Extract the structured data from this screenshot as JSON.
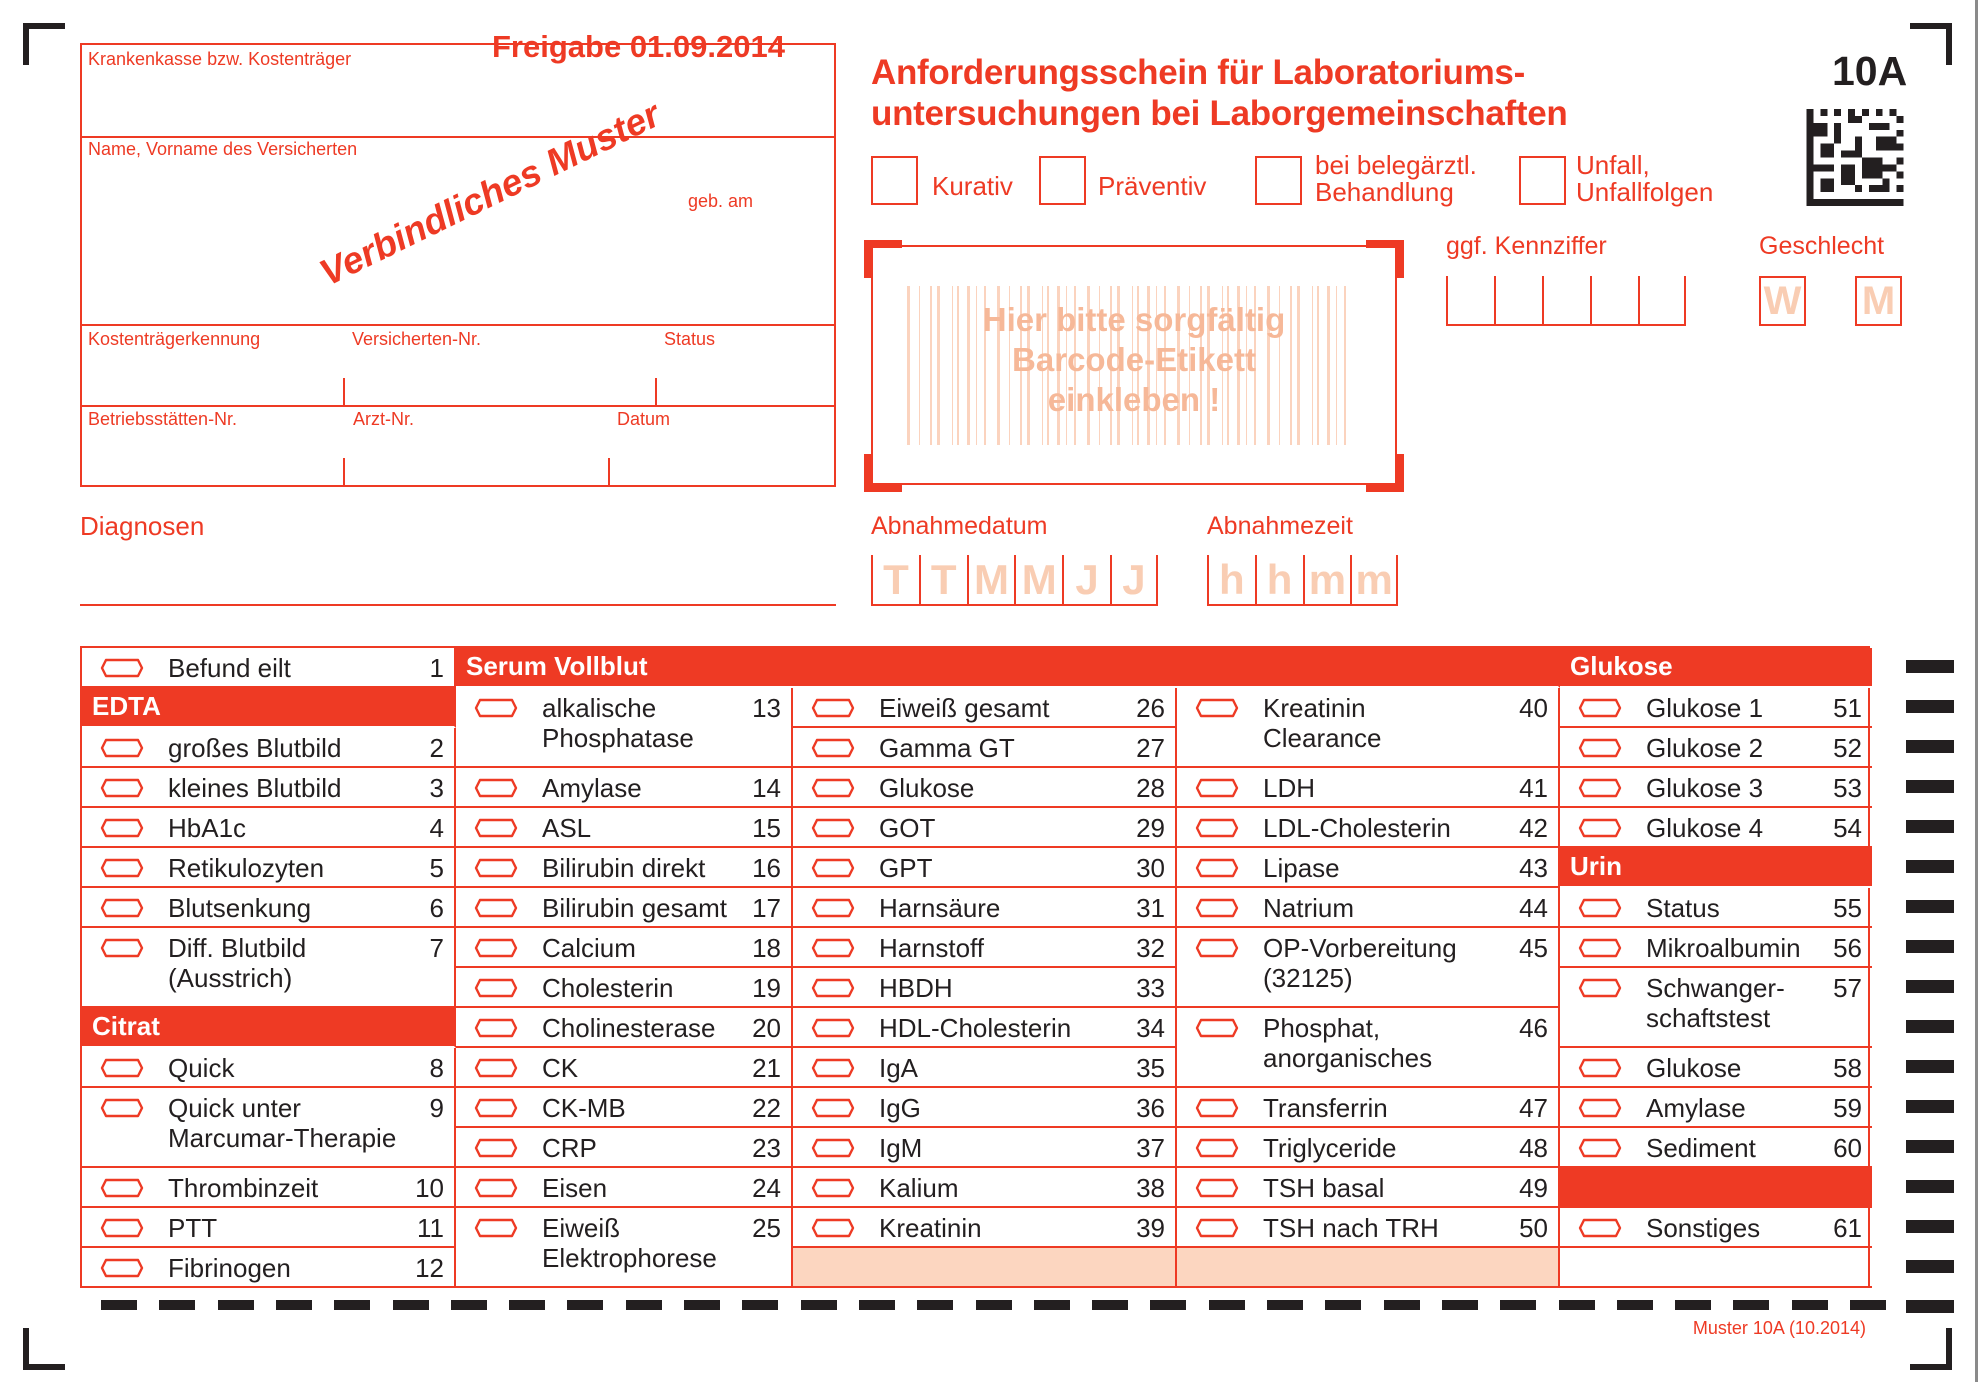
{
  "header": {
    "release": "Freigabe 01.09.2014",
    "watermark": "Verbindliches Muster",
    "title_line1": "Anforderungsschein für Laboratoriums-",
    "title_line2": "untersuchungen bei Laborgemeinschaften",
    "form_number": "10A",
    "datamatrix_icon": "datamatrix-code"
  },
  "patient_box": {
    "insurer": "Krankenkasse bzw. Kostenträger",
    "name": "Name, Vorname des Versicherten",
    "birth": "geb. am",
    "payer_id": "Kostenträgerkennung",
    "insured_no": "Versicherten-Nr.",
    "status": "Status",
    "site_no": "Betriebsstätten-Nr.",
    "doctor_no": "Arzt-Nr.",
    "date": "Datum"
  },
  "diagnoses_label": "Diagnosen",
  "checkboxes": [
    {
      "label": "Kurativ"
    },
    {
      "label": "Präventiv"
    },
    {
      "label": "bei belegärztl.\nBehandlung"
    },
    {
      "label": "Unfall,\nUnfallfolgen"
    }
  ],
  "barcode_area": {
    "text_line1": "Hier bitte sorgfältig",
    "text_line2": "Barcode-Etikett",
    "text_line3": "einkleben !"
  },
  "kennziffer": {
    "label": "ggf. Kennziffer",
    "cells": 5
  },
  "sex": {
    "label": "Geschlecht",
    "female": "W",
    "male": "M"
  },
  "collection_date": {
    "label": "Abnahmedatum",
    "placeholders": [
      "T",
      "T",
      "M",
      "M",
      "J",
      "J"
    ]
  },
  "collection_time": {
    "label": "Abnahmezeit",
    "placeholders": [
      "h",
      "h",
      "m",
      "m"
    ]
  },
  "serum_header": "Serum Vollblut",
  "columns": [
    {
      "start": 1,
      "cells": [
        {
          "label": "Befund eilt",
          "num": "1",
          "span": 1
        },
        {
          "header": "EDTA"
        },
        {
          "label": "großes Blutbild",
          "num": "2",
          "span": 1
        },
        {
          "label": "kleines Blutbild",
          "num": "3",
          "span": 1
        },
        {
          "label": "HbA1c",
          "num": "4",
          "span": 1
        },
        {
          "label": "Retikulozyten",
          "num": "5",
          "span": 1
        },
        {
          "label": "Blutsenkung",
          "num": "6",
          "span": 1
        },
        {
          "label": "Diff. Blutbild\n(Ausstrich)",
          "num": "7",
          "span": 2
        },
        {
          "header": "Citrat"
        },
        {
          "label": "Quick",
          "num": "8",
          "span": 1
        },
        {
          "label": "Quick unter\nMarcumar-Therapie",
          "num": "9",
          "span": 2
        },
        {
          "label": "Thrombinzeit",
          "num": "10",
          "span": 1
        },
        {
          "label": "PTT",
          "num": "11",
          "span": 1
        },
        {
          "label": "Fibrinogen",
          "num": "12",
          "span": 1
        }
      ]
    },
    {
      "start": 2,
      "cells": [
        {
          "label": "alkalische\nPhosphatase",
          "num": "13",
          "span": 2
        },
        {
          "label": "Amylase",
          "num": "14",
          "span": 1
        },
        {
          "label": "ASL",
          "num": "15",
          "span": 1
        },
        {
          "label": "Bilirubin direkt",
          "num": "16",
          "span": 1
        },
        {
          "label": "Bilirubin gesamt",
          "num": "17",
          "span": 1
        },
        {
          "label": "Calcium",
          "num": "18",
          "span": 1
        },
        {
          "label": "Cholesterin",
          "num": "19",
          "span": 1
        },
        {
          "label": "Cholinesterase",
          "num": "20",
          "span": 1
        },
        {
          "label": "CK",
          "num": "21",
          "span": 1
        },
        {
          "label": "CK-MB",
          "num": "22",
          "span": 1
        },
        {
          "label": "CRP",
          "num": "23",
          "span": 1
        },
        {
          "label": "Eisen",
          "num": "24",
          "span": 1
        },
        {
          "label": "Eiweiß\nElektrophorese",
          "num": "25",
          "span": 2
        }
      ]
    },
    {
      "start": 2,
      "cells": [
        {
          "label": "Eiweiß gesamt",
          "num": "26",
          "span": 1
        },
        {
          "label": "Gamma GT",
          "num": "27",
          "span": 1
        },
        {
          "label": "Glukose",
          "num": "28",
          "span": 1
        },
        {
          "label": "GOT",
          "num": "29",
          "span": 1
        },
        {
          "label": "GPT",
          "num": "30",
          "span": 1
        },
        {
          "label": "Harnsäure",
          "num": "31",
          "span": 1
        },
        {
          "label": "Harnstoff",
          "num": "32",
          "span": 1
        },
        {
          "label": "HBDH",
          "num": "33",
          "span": 1
        },
        {
          "label": "HDL-Cholesterin",
          "num": "34",
          "span": 1
        },
        {
          "label": "IgA",
          "num": "35",
          "span": 1
        },
        {
          "label": "IgG",
          "num": "36",
          "span": 1
        },
        {
          "label": "IgM",
          "num": "37",
          "span": 1
        },
        {
          "label": "Kalium",
          "num": "38",
          "span": 1
        },
        {
          "label": "Kreatinin",
          "num": "39",
          "span": 1
        },
        {
          "fill": "peach"
        }
      ]
    },
    {
      "start": 2,
      "cells": [
        {
          "label": "Kreatinin\nClearance",
          "num": "40",
          "span": 2
        },
        {
          "label": "LDH",
          "num": "41",
          "span": 1
        },
        {
          "label": "LDL-Cholesterin",
          "num": "42",
          "span": 1
        },
        {
          "label": "Lipase",
          "num": "43",
          "span": 1
        },
        {
          "label": "Natrium",
          "num": "44",
          "span": 1
        },
        {
          "label": "OP-Vorbereitung\n(32125)",
          "num": "45",
          "span": 2
        },
        {
          "label": "Phosphat,\nanorganisches",
          "num": "46",
          "span": 2
        },
        {
          "label": "Transferrin",
          "num": "47",
          "span": 1
        },
        {
          "label": "Triglyceride",
          "num": "48",
          "span": 1
        },
        {
          "label": "TSH basal",
          "num": "49",
          "span": 1
        },
        {
          "label": "TSH nach TRH",
          "num": "50",
          "span": 1
        },
        {
          "fill": "peach"
        }
      ]
    },
    {
      "start": 1,
      "cells": [
        {
          "header": "Glukose"
        },
        {
          "label": "Glukose 1",
          "num": "51",
          "span": 1
        },
        {
          "label": "Glukose 2",
          "num": "52",
          "span": 1
        },
        {
          "label": "Glukose 3",
          "num": "53",
          "span": 1
        },
        {
          "label": "Glukose 4",
          "num": "54",
          "span": 1
        },
        {
          "header": "Urin"
        },
        {
          "label": "Status",
          "num": "55",
          "span": 1
        },
        {
          "label": "Mikroalbumin",
          "num": "56",
          "span": 1
        },
        {
          "label": "Schwanger-\nschaftstest",
          "num": "57",
          "span": 2
        },
        {
          "label": "Glukose",
          "num": "58",
          "span": 1
        },
        {
          "label": "Amylase",
          "num": "59",
          "span": 1
        },
        {
          "label": "Sediment",
          "num": "60",
          "span": 1
        },
        {
          "fill": "solid"
        },
        {
          "label": "Sonstiges",
          "num": "61",
          "span": 1
        },
        {
          "fill": "blank"
        }
      ]
    }
  ],
  "footer": "Muster 10A (10.2014)",
  "colors": {
    "accent": "#EE3A24",
    "peach": "#FCD6C0",
    "text": "#231F20"
  }
}
